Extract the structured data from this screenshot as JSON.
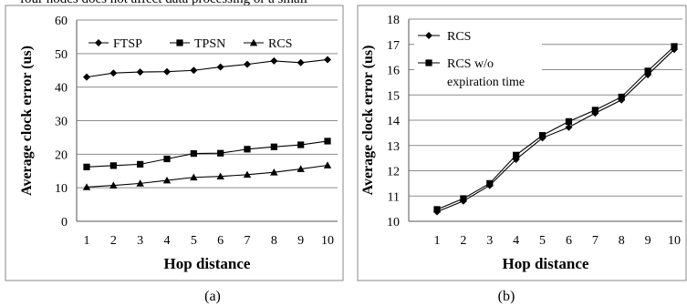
{
  "caption_top": "four nodes does not affect data processing or a small",
  "panel_labels": [
    "(a)",
    "(b)"
  ],
  "chart_data": [
    {
      "type": "line",
      "xlabel": "Hop distance",
      "ylabel": "Average clock error (us)",
      "x": [
        1,
        2,
        3,
        4,
        5,
        6,
        7,
        8,
        9,
        10
      ],
      "ylim": [
        0,
        60
      ],
      "yticks": [
        0,
        10,
        20,
        30,
        40,
        50,
        60
      ],
      "grid": "horizontal",
      "legend_position": "top",
      "series": [
        {
          "name": "FTSP",
          "marker": "diamond",
          "values": [
            43,
            44.2,
            44.5,
            44.6,
            45,
            46,
            46.8,
            47.8,
            47.3,
            48.2
          ]
        },
        {
          "name": "TPSN",
          "marker": "square",
          "values": [
            16.2,
            16.6,
            17,
            18.6,
            20.2,
            20.3,
            21.5,
            22.2,
            22.8,
            23.9
          ]
        },
        {
          "name": "RCS",
          "marker": "triangle",
          "values": [
            10.2,
            10.7,
            11.3,
            12.2,
            13.1,
            13.4,
            13.9,
            14.6,
            15.6,
            16.7
          ]
        }
      ]
    },
    {
      "type": "line",
      "xlabel": "Hop distance",
      "ylabel": "Average clock error (us)",
      "x": [
        1,
        2,
        3,
        4,
        5,
        6,
        7,
        8,
        9,
        10
      ],
      "ylim": [
        10,
        18
      ],
      "yticks": [
        10,
        11,
        12,
        13,
        14,
        15,
        16,
        17,
        18
      ],
      "grid": "horizontal",
      "legend_position": "top-left",
      "series": [
        {
          "name": "RCS",
          "marker": "diamond",
          "values": [
            10.38,
            10.8,
            11.42,
            12.45,
            13.3,
            13.72,
            14.28,
            14.8,
            15.8,
            16.8
          ]
        },
        {
          "name": "RCS w/o expiration time",
          "name_lines": [
            "RCS w/o",
            "expiration time"
          ],
          "marker": "square",
          "values": [
            10.47,
            10.9,
            11.5,
            12.62,
            13.4,
            13.95,
            14.4,
            14.92,
            15.95,
            16.92
          ]
        }
      ]
    }
  ]
}
